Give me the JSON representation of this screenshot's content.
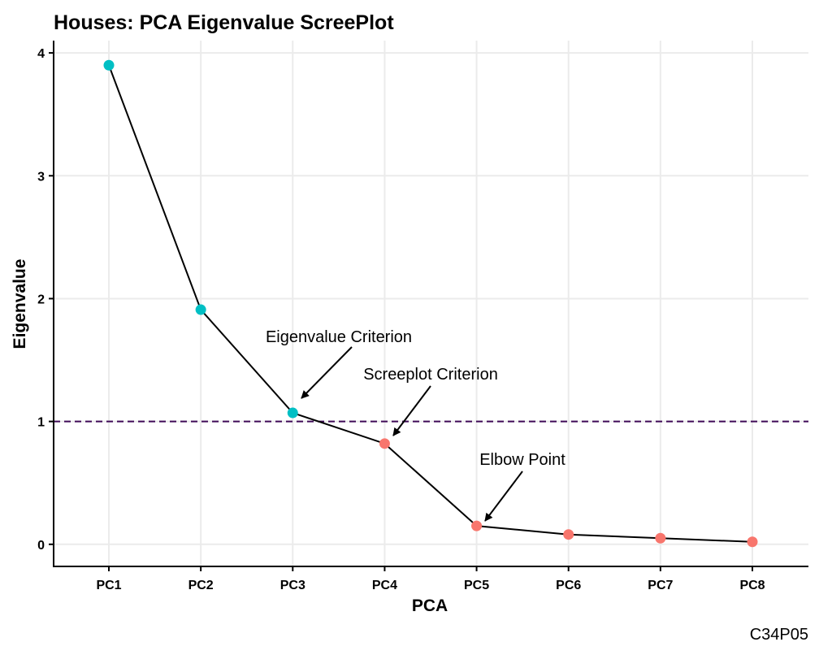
{
  "chart_data": {
    "type": "line",
    "title": "Houses: PCA Eigenvalue ScreePlot",
    "xlabel": "PCA",
    "ylabel": "Eigenvalue",
    "caption": "C34P05",
    "categories": [
      "PC1",
      "PC2",
      "PC3",
      "PC4",
      "PC5",
      "PC6",
      "PC7",
      "PC8"
    ],
    "values": [
      3.9,
      1.91,
      1.07,
      0.82,
      0.15,
      0.08,
      0.05,
      0.02
    ],
    "point_groups": [
      "above",
      "above",
      "above",
      "below",
      "below",
      "below",
      "below",
      "below"
    ],
    "group_colors": {
      "above": "#00BFC4",
      "below": "#F8766D"
    },
    "line_color": "#000000",
    "ylim": [
      -0.18,
      4.1
    ],
    "yticks": [
      0,
      1,
      2,
      3,
      4
    ],
    "grid": true,
    "legend": "none",
    "reference_line": {
      "y": 1,
      "style": "dashed",
      "color": "#3F0A57"
    },
    "annotations": [
      {
        "text": "Eigenvalue Criterion",
        "target": "PC3"
      },
      {
        "text": "Screeplot Criterion",
        "target": "PC4"
      },
      {
        "text": "Elbow Point",
        "target": "PC5"
      }
    ]
  }
}
